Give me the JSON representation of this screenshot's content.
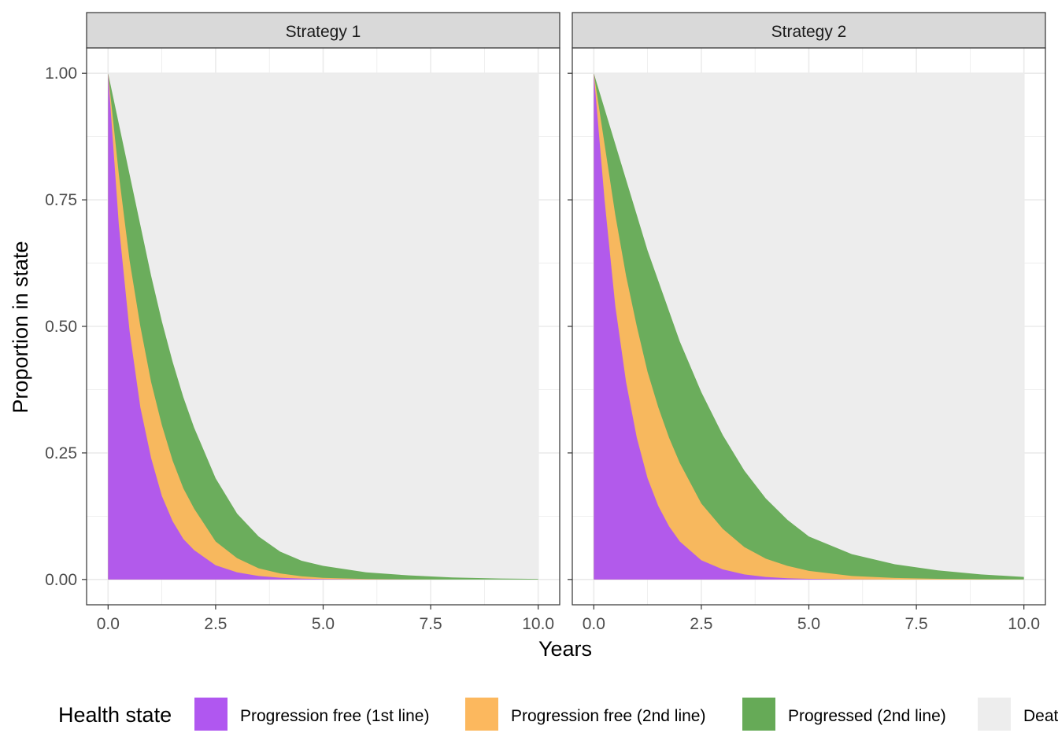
{
  "chart_data": {
    "type": "area",
    "stacked": true,
    "xlabel": "Years",
    "ylabel": "Proportion in state",
    "xlim": [
      -0.5,
      10.5
    ],
    "ylim": [
      -0.05,
      1.05
    ],
    "x_ticks": [
      0,
      2.5,
      5,
      7.5,
      10
    ],
    "x_tick_labels": [
      "0.0",
      "2.5",
      "5.0",
      "7.5",
      "10.0"
    ],
    "y_ticks": [
      0,
      0.25,
      0.5,
      0.75,
      1
    ],
    "y_tick_labels": [
      "0.00",
      "0.25",
      "0.50",
      "0.75",
      "1.00"
    ],
    "grid": true,
    "legend": {
      "title": "Health state",
      "position": "bottom",
      "entries": [
        "Progression free (1st line)",
        "Progression free (2nd line)",
        "Progressed (2nd line)",
        "Death"
      ]
    },
    "colors": {
      "Progression free (1st line)": "#B057F0",
      "Progression free (2nd line)": "#FCB85E",
      "Progressed (2nd line)": "#66AA57",
      "Death": "#EDEDED",
      "strip_fill": "#D9D9D9",
      "grid": "#EBEBEB"
    },
    "x": [
      0,
      0.25,
      0.5,
      0.75,
      1,
      1.25,
      1.5,
      1.75,
      2,
      2.5,
      3,
      3.5,
      4,
      4.5,
      5,
      6,
      7,
      8,
      9,
      10
    ],
    "panels": [
      {
        "strip": "Strategy 1",
        "cumulative_upper_bounds": [
          {
            "name": "Progression free (1st line)",
            "values": [
              1.0,
              0.7,
              0.49,
              0.34,
              0.24,
              0.165,
              0.115,
              0.08,
              0.058,
              0.028,
              0.014,
              0.007,
              0.0035,
              0.0017,
              0.0008,
              0.0002,
              0,
              0,
              0,
              0
            ]
          },
          {
            "name": "Progression free (2nd line)",
            "values": [
              1.0,
              0.8,
              0.63,
              0.5,
              0.39,
              0.305,
              0.235,
              0.18,
              0.14,
              0.075,
              0.042,
              0.022,
              0.012,
              0.0063,
              0.0032,
              0.0009,
              0.0002,
              0,
              0,
              0
            ]
          },
          {
            "name": "Progressed (2nd line)",
            "values": [
              1.0,
              0.9,
              0.8,
              0.7,
              0.6,
              0.51,
              0.43,
              0.36,
              0.3,
              0.2,
              0.13,
              0.085,
              0.055,
              0.037,
              0.027,
              0.014,
              0.008,
              0.004,
              0.002,
              0.001
            ]
          },
          {
            "name": "Death",
            "values": [
              1,
              1,
              1,
              1,
              1,
              1,
              1,
              1,
              1,
              1,
              1,
              1,
              1,
              1,
              1,
              1,
              1,
              1,
              1,
              1
            ]
          }
        ]
      },
      {
        "strip": "Strategy 2",
        "cumulative_upper_bounds": [
          {
            "name": "Progression free (1st line)",
            "values": [
              1.0,
              0.75,
              0.54,
              0.39,
              0.28,
              0.2,
              0.145,
              0.105,
              0.075,
              0.038,
              0.02,
              0.01,
              0.005,
              0.0025,
              0.0012,
              0.0003,
              0,
              0,
              0,
              0
            ]
          },
          {
            "name": "Progression free (2nd line)",
            "values": [
              1.0,
              0.86,
              0.72,
              0.6,
              0.5,
              0.41,
              0.34,
              0.28,
              0.23,
              0.15,
              0.1,
              0.064,
              0.041,
              0.027,
              0.017,
              0.007,
              0.003,
              0.0012,
              0.0005,
              0.0002
            ]
          },
          {
            "name": "Progressed (2nd line)",
            "values": [
              1.0,
              0.93,
              0.86,
              0.79,
              0.72,
              0.65,
              0.59,
              0.53,
              0.47,
              0.37,
              0.285,
              0.215,
              0.16,
              0.118,
              0.085,
              0.05,
              0.03,
              0.018,
              0.01,
              0.005
            ]
          },
          {
            "name": "Death",
            "values": [
              1,
              1,
              1,
              1,
              1,
              1,
              1,
              1,
              1,
              1,
              1,
              1,
              1,
              1,
              1,
              1,
              1,
              1,
              1,
              1
            ]
          }
        ]
      }
    ]
  }
}
